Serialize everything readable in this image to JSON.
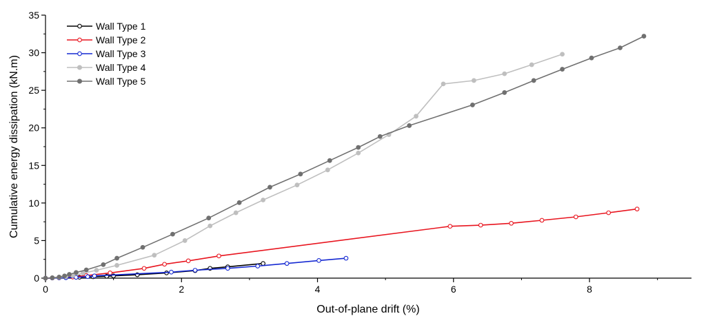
{
  "chart_data": {
    "type": "line",
    "xlabel": "Out-of-plane drift (%)",
    "ylabel": "Cumulative energy dissipation (kN.m)",
    "xlim": [
      0,
      9.5
    ],
    "ylim": [
      0,
      35
    ],
    "xticks": [
      0,
      2,
      4,
      6,
      8
    ],
    "yticks": [
      0,
      5,
      10,
      15,
      20,
      25,
      30,
      35
    ],
    "grid": false,
    "legend_position": "top-left",
    "series": [
      {
        "name": "Wall Type 1",
        "color": "#000000",
        "marker": "open-circle",
        "x": [
          0.0,
          0.1,
          0.2,
          0.3,
          0.5,
          0.7,
          0.9,
          1.0,
          1.35,
          1.78,
          2.2,
          2.42,
          2.68,
          3.2
        ],
        "y": [
          0.0,
          0.02,
          0.05,
          0.08,
          0.12,
          0.18,
          0.25,
          0.3,
          0.45,
          0.7,
          1.0,
          1.3,
          1.5,
          1.95
        ]
      },
      {
        "name": "Wall Type 2",
        "color": "#e8141e",
        "marker": "open-circle",
        "x": [
          0.0,
          0.1,
          0.2,
          0.3,
          0.4,
          0.6,
          0.95,
          1.45,
          1.75,
          2.1,
          2.55,
          5.95,
          6.4,
          6.85,
          7.3,
          7.8,
          8.28,
          8.7
        ],
        "y": [
          0.0,
          0.02,
          0.05,
          0.1,
          0.15,
          0.35,
          0.7,
          1.3,
          1.85,
          2.3,
          2.95,
          6.9,
          7.05,
          7.3,
          7.7,
          8.15,
          8.7,
          9.2
        ]
      },
      {
        "name": "Wall Type 3",
        "color": "#1428d2",
        "marker": "open-circle",
        "x": [
          0.0,
          0.1,
          0.2,
          0.3,
          0.45,
          0.62,
          0.72,
          1.85,
          2.2,
          2.68,
          3.12,
          3.55,
          4.02,
          4.42
        ],
        "y": [
          0.0,
          0.02,
          0.04,
          0.06,
          0.1,
          0.2,
          0.3,
          0.8,
          1.05,
          1.3,
          1.6,
          1.95,
          2.35,
          2.65
        ]
      },
      {
        "name": "Wall Type 4",
        "color": "#bfbfbf",
        "marker": "filled-circle",
        "x": [
          0.0,
          0.1,
          0.2,
          0.3,
          0.4,
          0.55,
          0.75,
          1.05,
          1.6,
          2.05,
          2.42,
          2.8,
          3.2,
          3.7,
          4.15,
          4.6,
          5.05,
          5.45,
          5.85,
          6.3,
          6.75,
          7.15,
          7.6
        ],
        "y": [
          0.0,
          0.05,
          0.1,
          0.2,
          0.35,
          0.65,
          1.05,
          1.7,
          3.05,
          5.0,
          6.95,
          8.7,
          10.4,
          12.4,
          14.4,
          16.65,
          19.1,
          21.55,
          25.85,
          26.3,
          27.2,
          28.4,
          29.8
        ]
      },
      {
        "name": "Wall Type 5",
        "color": "#707070",
        "marker": "filled-circle",
        "x": [
          0.0,
          0.1,
          0.2,
          0.28,
          0.35,
          0.45,
          0.6,
          0.85,
          1.05,
          1.43,
          1.87,
          2.4,
          2.85,
          3.3,
          3.75,
          4.18,
          4.6,
          4.92,
          5.35,
          6.28,
          6.75,
          7.18,
          7.6,
          8.03,
          8.45,
          8.8
        ],
        "y": [
          0.0,
          0.05,
          0.15,
          0.3,
          0.5,
          0.75,
          1.1,
          1.8,
          2.65,
          4.1,
          5.85,
          8.0,
          10.05,
          12.1,
          13.85,
          15.65,
          17.4,
          18.85,
          20.3,
          23.05,
          24.7,
          26.3,
          27.8,
          29.3,
          30.65,
          32.2
        ]
      }
    ]
  }
}
